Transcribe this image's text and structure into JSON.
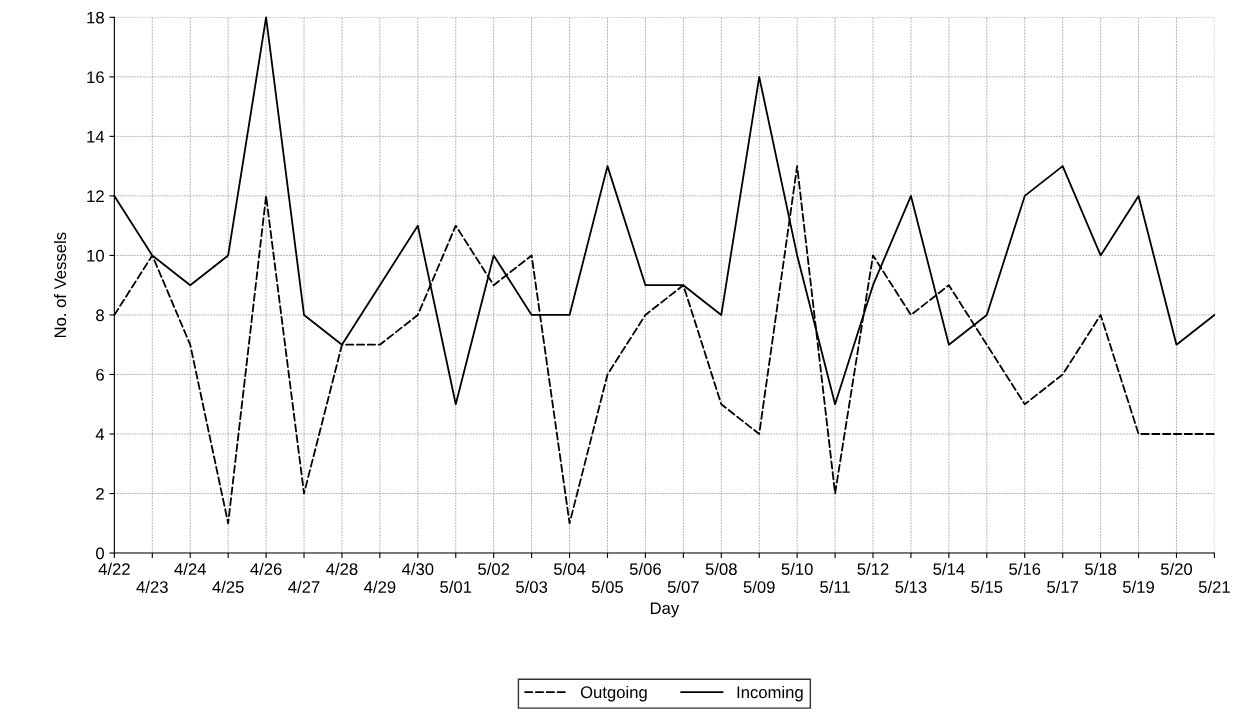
{
  "chart_data": {
    "type": "line",
    "xlabel": "Day",
    "ylabel": "No. of Vessels",
    "categories": [
      "4/22",
      "4/23",
      "4/24",
      "4/25",
      "4/26",
      "4/27",
      "4/28",
      "4/29",
      "4/30",
      "5/01",
      "5/02",
      "5/03",
      "5/04",
      "5/05",
      "5/06",
      "5/07",
      "5/08",
      "5/09",
      "5/10",
      "5/11",
      "5/12",
      "5/13",
      "5/14",
      "5/15",
      "5/16",
      "5/17",
      "5/18",
      "5/19",
      "5/20",
      "5/21"
    ],
    "series": [
      {
        "name": "Outgoing",
        "color": "#000000",
        "line_style": "dashed",
        "values": [
          8,
          10,
          7,
          1,
          12,
          2,
          7,
          7,
          8,
          11,
          9,
          10,
          1,
          6,
          8,
          9,
          5,
          4,
          13,
          2,
          10,
          8,
          9,
          7,
          5,
          6,
          8,
          4,
          4,
          4
        ]
      },
      {
        "name": "Incoming",
        "color": "#000000",
        "line_style": "solid",
        "values": [
          12,
          10,
          9,
          10,
          18,
          8,
          7,
          9,
          11,
          5,
          10,
          8,
          8,
          13,
          9,
          9,
          8,
          16,
          10,
          5,
          9,
          12,
          7,
          8,
          12,
          13,
          10,
          12,
          7,
          8
        ]
      }
    ],
    "ylim": [
      0,
      18
    ],
    "yticks": [
      0,
      2,
      4,
      6,
      8,
      10,
      12,
      14,
      16,
      18
    ],
    "grid": true,
    "legend": "bottom",
    "marker": "none"
  }
}
